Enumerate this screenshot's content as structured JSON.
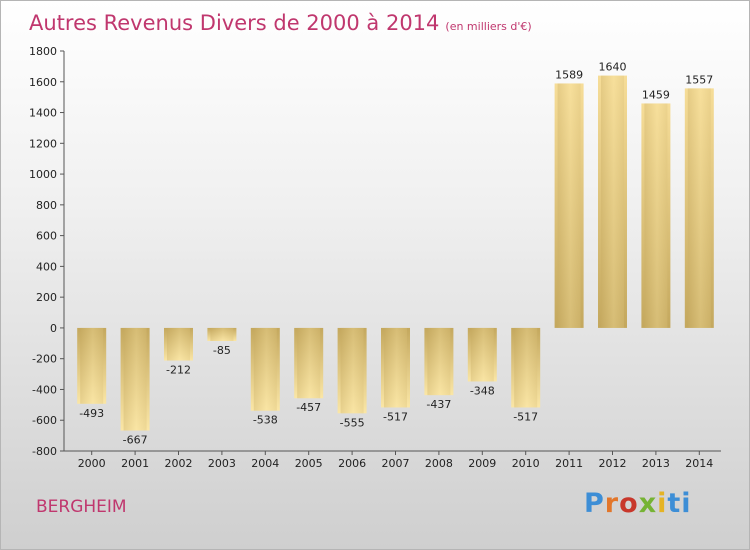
{
  "header": {
    "title": "Autres Revenus Divers de 2000 à 2014",
    "subtitle": "(en milliers d'€)"
  },
  "footer": {
    "city": "BERGHEIM",
    "logo_letters": [
      "P",
      "r",
      "o",
      "x",
      "i",
      "ti"
    ]
  },
  "colors": {
    "accent": "#c0376e",
    "bar_light": "#f9e4a2",
    "bar_dark": "#c7ab62"
  },
  "chart_data": {
    "type": "bar",
    "title": "Autres Revenus Divers de 2000 à 2014",
    "subtitle": "(en milliers d'€)",
    "categories": [
      "2000",
      "2001",
      "2002",
      "2003",
      "2004",
      "2005",
      "2006",
      "2007",
      "2008",
      "2009",
      "2010",
      "2011",
      "2012",
      "2013",
      "2014"
    ],
    "values": [
      -493,
      -667,
      -212,
      -85,
      -538,
      -457,
      -555,
      -517,
      -437,
      -348,
      -517,
      1589,
      1640,
      1459,
      1557
    ],
    "yticks": [
      -800,
      -600,
      -400,
      -200,
      0,
      200,
      400,
      600,
      800,
      1000,
      1200,
      1400,
      1600,
      1800
    ],
    "ylim": [
      -800,
      1800
    ],
    "grid": false,
    "legend": "none"
  }
}
